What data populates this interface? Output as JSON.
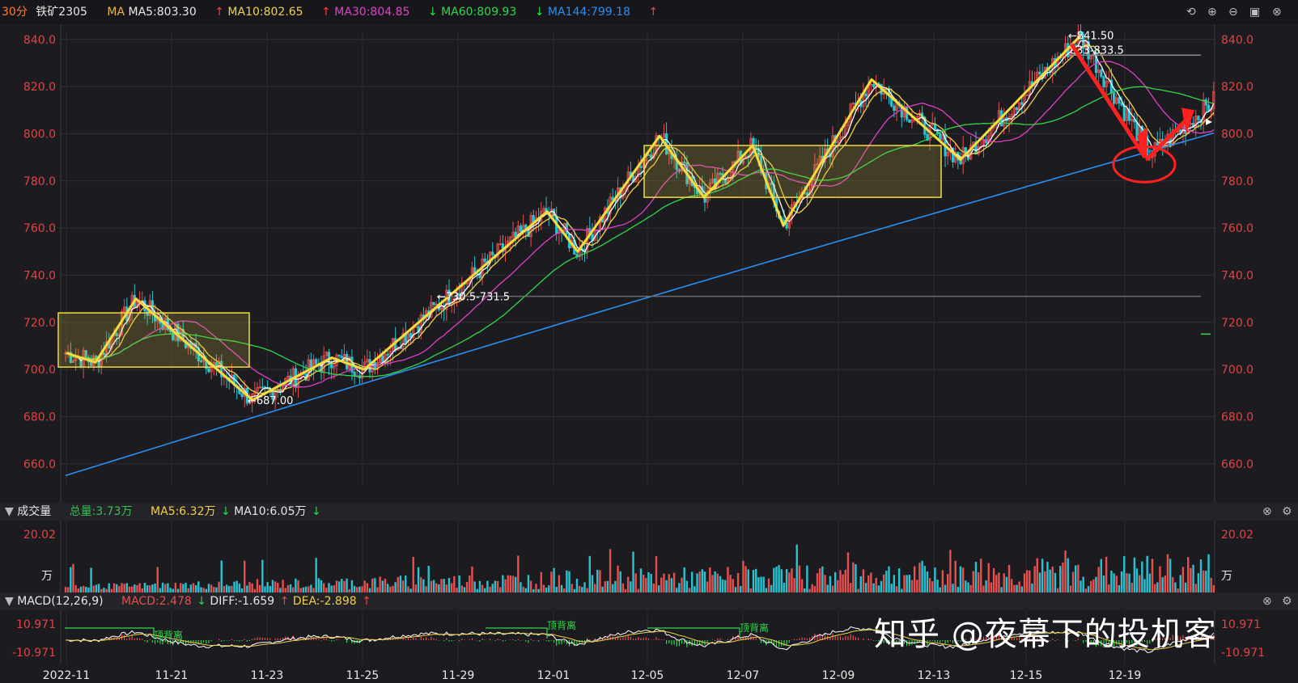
{
  "header": {
    "period": "30分",
    "symbol": "铁矿2305",
    "ma_label": "MA",
    "ma5": "MA5:803.30",
    "ma10": "MA10:802.65",
    "ma30": "MA30:804.85",
    "ma60": "MA60:809.93",
    "ma144": "MA144:799.18",
    "up_arrow": "↑",
    "down_arrow": "↓"
  },
  "volume_panel": {
    "title": "成交量",
    "total": "总量:3.73万",
    "ma5": "MA5:6.32万",
    "ma10": "MA10:6.05万",
    "top_label": "20.02",
    "unit": "万"
  },
  "macd_panel": {
    "title": "MACD(12,26,9)",
    "macd": "MACD:2.478",
    "diff": "DIFF:-1.659",
    "dea": "DEA:-2.898",
    "top_label": "10.971",
    "bottom_label": "-10.971",
    "divergence_labels": [
      "顶背离",
      "顶背离",
      "顶背离"
    ]
  },
  "watermark": "知乎 @夜幕下的投机客",
  "colors": {
    "background": "#1c1c20",
    "up": "#e84f4f",
    "down": "#27c3d1",
    "ma5": "#ffffff",
    "ma10": "#f2d14a",
    "ma30": "#e040c8",
    "ma60": "#2fd84a",
    "ma144": "#2a8ef2",
    "annotation": "#f5dc3c",
    "arrow": "#ff2020"
  },
  "chart_data": {
    "type": "candlestick",
    "y_axis_ticks": [
      "660.0",
      "680.0",
      "700.0",
      "720.0",
      "740.0",
      "760.0",
      "780.0",
      "800.0",
      "820.0",
      "840.0"
    ],
    "ylim": [
      651,
      843
    ],
    "x_tick_labels": [
      "2022-11",
      "11-21",
      "11-23",
      "11-25",
      "11-29",
      "12-01",
      "12-05",
      "12-07",
      "12-09",
      "12-13",
      "12-15",
      "12-19"
    ],
    "annotations": {
      "high": "841.50",
      "low": "687.00",
      "resistance": "833-833.5",
      "support": "730.5-731.5"
    },
    "zigzag": [
      {
        "x": "2022-11",
        "y": 707
      },
      {
        "x": "11-21-",
        "y": 703
      },
      {
        "x": "11-21",
        "y": 730
      },
      {
        "x": "11-23",
        "y": 687
      },
      {
        "x": "11-25",
        "y": 705
      },
      {
        "x": "11-25+",
        "y": 700
      },
      {
        "x": "12-01",
        "y": 767
      },
      {
        "x": "12-01+",
        "y": 750
      },
      {
        "x": "12-05",
        "y": 799
      },
      {
        "x": "12-05+",
        "y": 773
      },
      {
        "x": "12-07-",
        "y": 795
      },
      {
        "x": "12-07",
        "y": 761
      },
      {
        "x": "12-09",
        "y": 823
      },
      {
        "x": "12-13",
        "y": 789
      },
      {
        "x": "12-15",
        "y": 841.5
      }
    ],
    "consolidation_boxes": [
      {
        "y_range": [
          701,
          724
        ]
      },
      {
        "y_range": [
          773,
          795
        ]
      }
    ],
    "volume_max": "20.02",
    "macd_range": [
      -10.971,
      10.971
    ]
  }
}
